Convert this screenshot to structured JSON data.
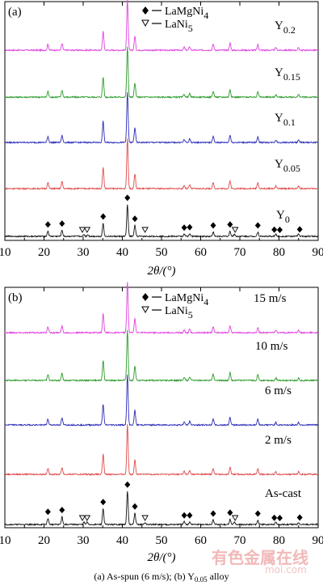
{
  "chart_data": [
    {
      "type": "line",
      "panel_label": "(a)",
      "xlabel": "2θ/(°)",
      "xlim": [
        10,
        90
      ],
      "xticks": [
        10,
        20,
        30,
        40,
        50,
        60,
        70,
        80,
        90
      ],
      "legend": [
        {
          "marker": "◆",
          "label": "LaMgNi4"
        },
        {
          "marker": "▽",
          "label": "LaNi5"
        }
      ],
      "series": [
        {
          "name": "Y0.2",
          "color": "#e040e0",
          "peaks": [
            [
              21.0,
              0.12
            ],
            [
              24.6,
              0.13
            ],
            [
              35.1,
              0.38
            ],
            [
              41.3,
              1.0
            ],
            [
              43.2,
              0.28
            ],
            [
              55.8,
              0.06
            ],
            [
              57.2,
              0.07
            ],
            [
              63.2,
              0.12
            ],
            [
              67.5,
              0.14
            ],
            [
              74.6,
              0.11
            ],
            [
              79.2,
              0.05
            ],
            [
              85.0,
              0.05
            ]
          ]
        },
        {
          "name": "Y0.15",
          "color": "#2a9a2a",
          "peaks": [
            [
              21.0,
              0.12
            ],
            [
              24.6,
              0.14
            ],
            [
              35.1,
              0.4
            ],
            [
              41.3,
              1.0
            ],
            [
              43.2,
              0.28
            ],
            [
              55.8,
              0.06
            ],
            [
              57.2,
              0.07
            ],
            [
              63.2,
              0.12
            ],
            [
              67.5,
              0.15
            ],
            [
              74.6,
              0.12
            ],
            [
              79.2,
              0.05
            ],
            [
              85.0,
              0.05
            ]
          ]
        },
        {
          "name": "Y0.1",
          "color": "#2a2ab8",
          "peaks": [
            [
              21.0,
              0.12
            ],
            [
              24.6,
              0.14
            ],
            [
              35.1,
              0.42
            ],
            [
              41.3,
              1.0
            ],
            [
              43.2,
              0.3
            ],
            [
              55.8,
              0.06
            ],
            [
              57.2,
              0.07
            ],
            [
              63.2,
              0.12
            ],
            [
              67.5,
              0.15
            ],
            [
              74.6,
              0.12
            ],
            [
              79.2,
              0.05
            ],
            [
              85.0,
              0.05
            ]
          ]
        },
        {
          "name": "Y0.05",
          "color": "#e04a4a",
          "peaks": [
            [
              21.0,
              0.12
            ],
            [
              24.6,
              0.14
            ],
            [
              35.1,
              0.42
            ],
            [
              41.3,
              1.0
            ],
            [
              43.2,
              0.3
            ],
            [
              55.8,
              0.06
            ],
            [
              57.2,
              0.07
            ],
            [
              63.2,
              0.12
            ],
            [
              67.5,
              0.15
            ],
            [
              74.6,
              0.12
            ],
            [
              79.2,
              0.05
            ],
            [
              85.0,
              0.05
            ]
          ]
        },
        {
          "name": "Y0",
          "color": "#111111",
          "peaks": [
            [
              21.0,
              0.12
            ],
            [
              24.6,
              0.14
            ],
            [
              30.2,
              0.04
            ],
            [
              31.2,
              0.04
            ],
            [
              35.1,
              0.3
            ],
            [
              41.3,
              0.72
            ],
            [
              43.2,
              0.25
            ],
            [
              55.8,
              0.05
            ],
            [
              57.2,
              0.06
            ],
            [
              63.2,
              0.1
            ],
            [
              67.5,
              0.12
            ],
            [
              68.6,
              0.05
            ],
            [
              74.6,
              0.1
            ],
            [
              79.2,
              0.05
            ],
            [
              85.0,
              0.05
            ]
          ]
        }
      ],
      "markers": {
        "LaMgNi4": [
          21.0,
          24.6,
          35.1,
          41.3,
          43.2,
          55.8,
          57.2,
          63.2,
          67.5,
          74.6,
          78.8,
          80.2,
          85.3
        ],
        "LaNi5": [
          29.8,
          31.0,
          45.8,
          68.8
        ]
      }
    },
    {
      "type": "line",
      "panel_label": "(b)",
      "xlabel": "2θ/(°)",
      "xlim": [
        10,
        90
      ],
      "xticks": [
        10,
        20,
        30,
        40,
        50,
        60,
        70,
        80,
        90
      ],
      "legend": [
        {
          "marker": "◆",
          "label": "LaMgNi4"
        },
        {
          "marker": "▽",
          "label": "LaNi5"
        }
      ],
      "series": [
        {
          "name": "15 m/s",
          "color": "#e040e0",
          "peaks": [
            [
              21.0,
              0.12
            ],
            [
              24.6,
              0.13
            ],
            [
              35.1,
              0.38
            ],
            [
              41.3,
              1.0
            ],
            [
              43.2,
              0.28
            ],
            [
              55.8,
              0.06
            ],
            [
              57.2,
              0.07
            ],
            [
              63.2,
              0.12
            ],
            [
              67.5,
              0.14
            ],
            [
              74.6,
              0.11
            ],
            [
              79.2,
              0.05
            ],
            [
              85.0,
              0.05
            ]
          ]
        },
        {
          "name": "10 m/s",
          "color": "#2a9a2a",
          "peaks": [
            [
              21.0,
              0.12
            ],
            [
              24.6,
              0.14
            ],
            [
              35.1,
              0.4
            ],
            [
              41.3,
              1.0
            ],
            [
              43.2,
              0.28
            ],
            [
              55.8,
              0.06
            ],
            [
              57.2,
              0.07
            ],
            [
              63.2,
              0.12
            ],
            [
              67.5,
              0.15
            ],
            [
              74.6,
              0.12
            ],
            [
              79.2,
              0.05
            ],
            [
              85.0,
              0.05
            ]
          ]
        },
        {
          "name": "6 m/s",
          "color": "#2a2ab8",
          "peaks": [
            [
              21.0,
              0.12
            ],
            [
              24.6,
              0.14
            ],
            [
              35.1,
              0.42
            ],
            [
              41.3,
              1.0
            ],
            [
              43.2,
              0.3
            ],
            [
              55.8,
              0.06
            ],
            [
              57.2,
              0.07
            ],
            [
              63.2,
              0.12
            ],
            [
              67.5,
              0.15
            ],
            [
              74.6,
              0.12
            ],
            [
              79.2,
              0.05
            ],
            [
              85.0,
              0.05
            ]
          ]
        },
        {
          "name": "2 m/s",
          "color": "#e04a4a",
          "peaks": [
            [
              21.0,
              0.12
            ],
            [
              24.6,
              0.14
            ],
            [
              35.1,
              0.4
            ],
            [
              41.3,
              1.0
            ],
            [
              43.2,
              0.3
            ],
            [
              55.8,
              0.06
            ],
            [
              57.2,
              0.07
            ],
            [
              63.2,
              0.12
            ],
            [
              67.5,
              0.15
            ],
            [
              74.6,
              0.12
            ],
            [
              79.2,
              0.05
            ],
            [
              85.0,
              0.05
            ]
          ]
        },
        {
          "name": "As-cast",
          "color": "#111111",
          "peaks": [
            [
              21.0,
              0.14
            ],
            [
              24.6,
              0.18
            ],
            [
              30.2,
              0.05
            ],
            [
              31.0,
              0.05
            ],
            [
              35.1,
              0.36
            ],
            [
              41.3,
              0.75
            ],
            [
              43.2,
              0.26
            ],
            [
              45.8,
              0.04
            ],
            [
              55.8,
              0.06
            ],
            [
              57.2,
              0.06
            ],
            [
              63.2,
              0.1
            ],
            [
              67.5,
              0.12
            ],
            [
              68.6,
              0.05
            ],
            [
              74.6,
              0.1
            ],
            [
              79.2,
              0.05
            ],
            [
              85.0,
              0.05
            ]
          ]
        }
      ],
      "markers": {
        "LaMgNi4": [
          21.0,
          24.6,
          35.1,
          41.3,
          43.2,
          55.8,
          57.2,
          63.2,
          67.5,
          74.6,
          78.8,
          80.2,
          85.3
        ],
        "LaNi5": [
          29.8,
          31.0,
          45.8,
          68.8
        ]
      }
    }
  ],
  "caption": "(a)   As-spun   (6   m/s); (b) Y0.05 alloy",
  "watermark": "有色金属在线",
  "watermark_sub": "mol.com"
}
